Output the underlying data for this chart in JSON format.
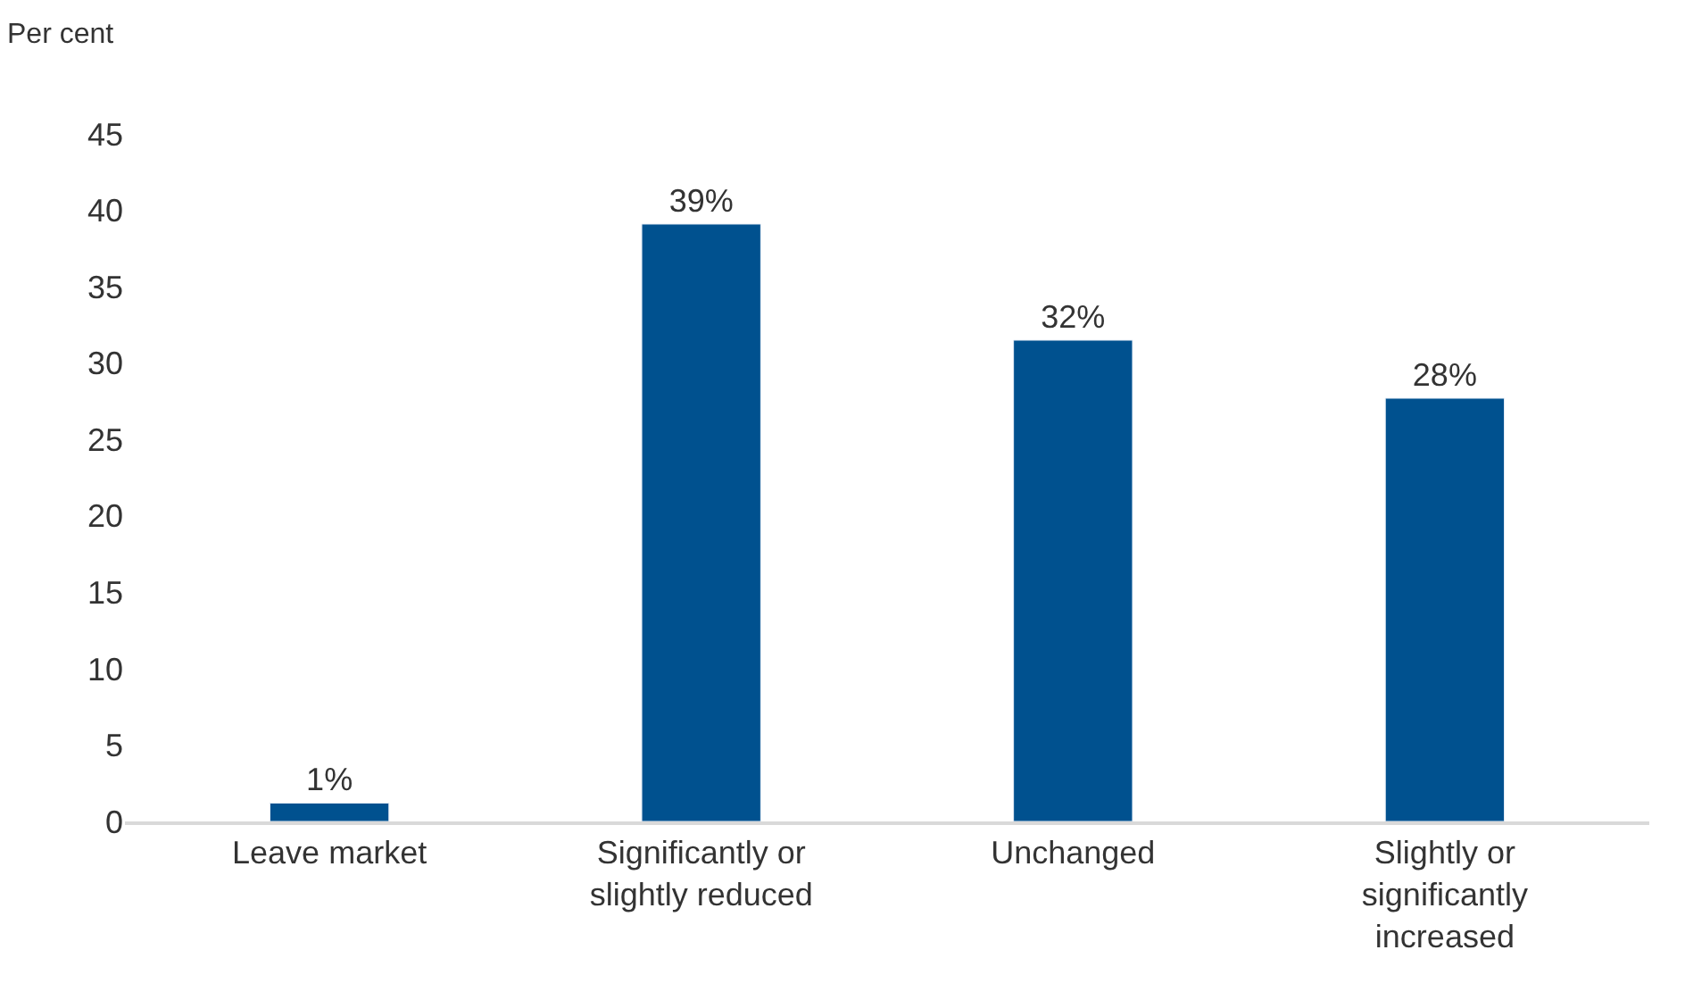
{
  "chart_data": {
    "type": "bar",
    "ylabel": "Per cent",
    "categories": [
      "Leave market",
      "Significantly or slightly reduced",
      "Unchanged",
      "Slightly or significantly increased"
    ],
    "values": [
      1.2,
      39.1,
      31.5,
      27.7
    ],
    "value_labels": [
      "1%",
      "39%",
      "32%",
      "28%"
    ],
    "color": "#00518f",
    "ylim": [
      0,
      45
    ],
    "yticks": [
      0,
      5,
      10,
      15,
      20,
      25,
      30,
      35,
      40,
      45
    ]
  }
}
